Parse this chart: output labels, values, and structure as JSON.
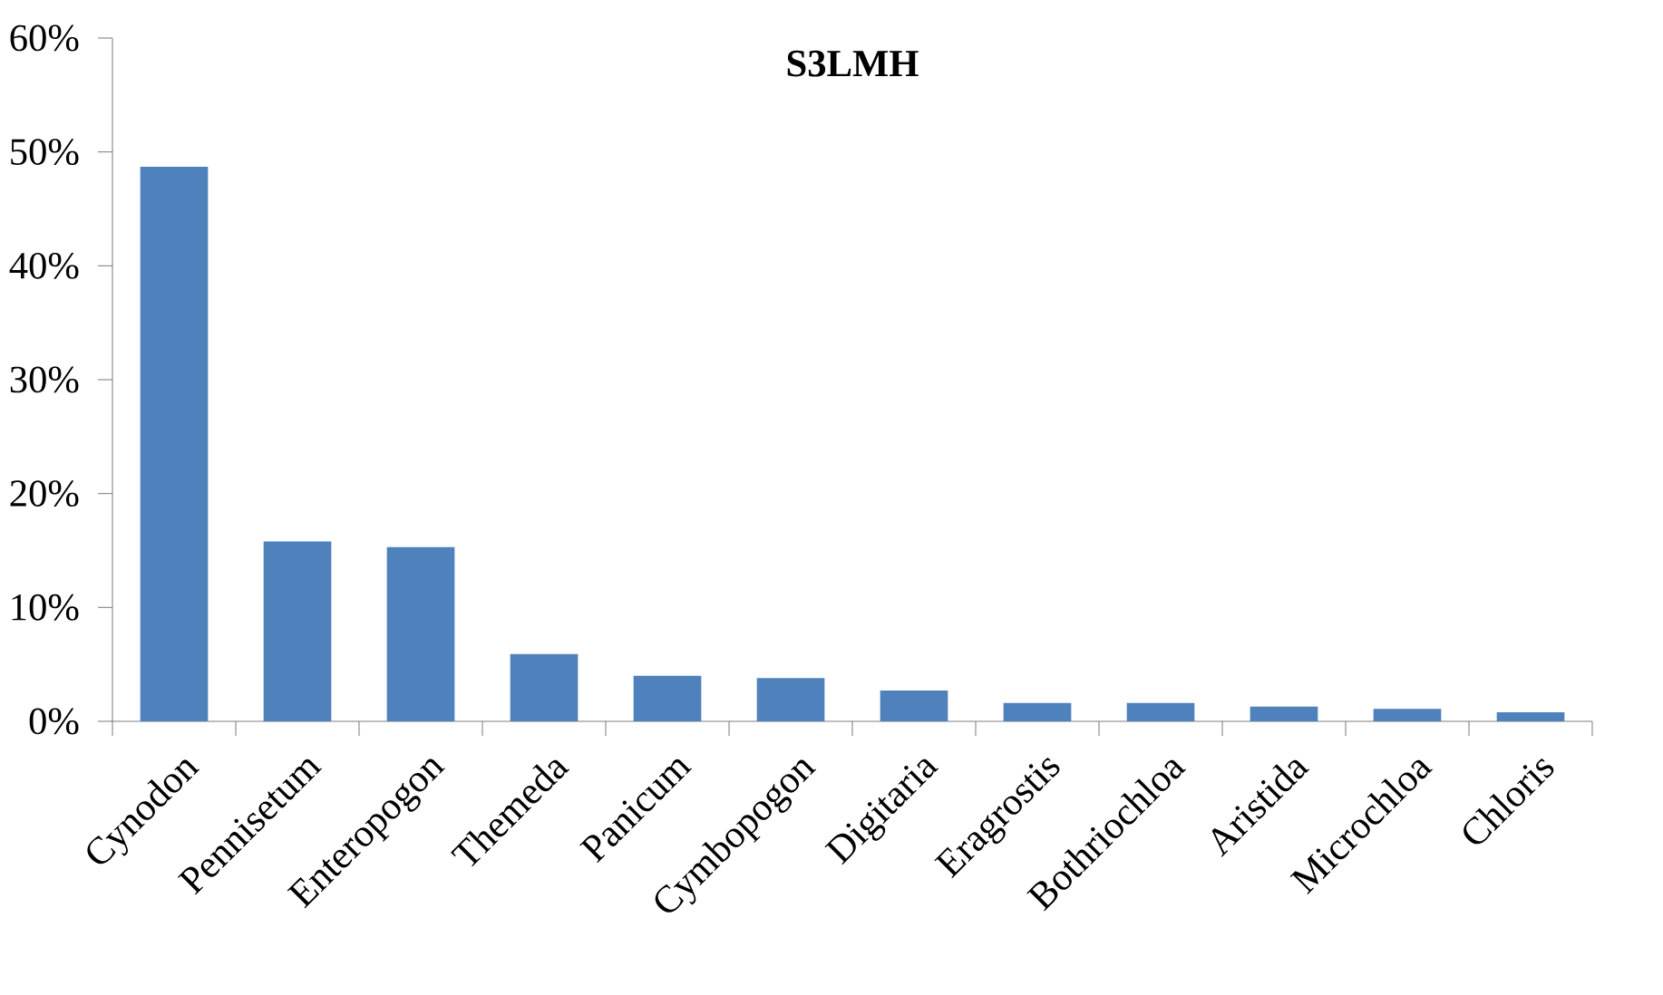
{
  "chart_data": {
    "type": "bar",
    "title": "S3LMH",
    "categories": [
      "Cynodon",
      "Pennisetum",
      "Enteropogon",
      "Themeda",
      "Panicum",
      "Cymbopogon",
      "Digitaria",
      "Eragrostis",
      "Bothriochloa",
      "Aristida",
      "Microchloa",
      "Chloris"
    ],
    "values": [
      48.7,
      15.8,
      15.3,
      5.9,
      4.0,
      3.8,
      2.7,
      1.6,
      1.6,
      1.3,
      1.1,
      0.8
    ],
    "color": "#4f81bd",
    "ylim": [
      0,
      60
    ],
    "yticks": [
      {
        "value": 0,
        "label": "0%"
      },
      {
        "value": 10,
        "label": "10%"
      },
      {
        "value": 20,
        "label": "20%"
      },
      {
        "value": 30,
        "label": "30%"
      },
      {
        "value": 40,
        "label": "40%"
      },
      {
        "value": 50,
        "label": "50%"
      },
      {
        "value": 60,
        "label": "60%"
      }
    ]
  }
}
